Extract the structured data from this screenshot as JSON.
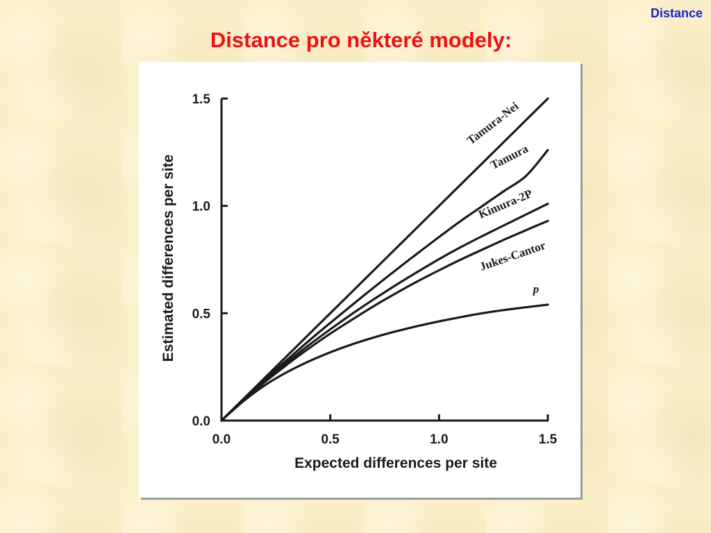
{
  "header": {
    "corner_label": "Distance",
    "title": "Distance pro některé modely:"
  },
  "colors": {
    "background": "#fbefc9",
    "title": "#ee1111",
    "corner_label": "#1a22c8",
    "plot_line": "#1a1a1a"
  },
  "chart_data": {
    "type": "line",
    "title": "",
    "xlabel": "Expected differences per site",
    "ylabel": "Estimated differences per site",
    "xlim": [
      0,
      1.5
    ],
    "ylim": [
      0,
      1.5
    ],
    "grid": false,
    "legend": "inline labels at line ends",
    "x_ticks": [
      "0.0",
      "0.5",
      "1.0",
      "1.5"
    ],
    "y_ticks": [
      "0.0",
      "0.5",
      "1.0",
      "1.5"
    ],
    "x": [
      0,
      0.1,
      0.2,
      0.3,
      0.4,
      0.5,
      0.6,
      0.7,
      0.8,
      0.9,
      1.0,
      1.1,
      1.2,
      1.3,
      1.4,
      1.5
    ],
    "series": [
      {
        "name": "Tamura-Nei",
        "values": [
          0,
          0.1,
          0.2,
          0.3,
          0.4,
          0.5,
          0.6,
          0.7,
          0.8,
          0.9,
          1.0,
          1.1,
          1.2,
          1.3,
          1.4,
          1.5
        ]
      },
      {
        "name": "Tamura",
        "values": [
          0,
          0.098,
          0.192,
          0.282,
          0.37,
          0.455,
          0.538,
          0.62,
          0.7,
          0.778,
          0.855,
          0.93,
          1.0,
          1.07,
          1.14,
          1.26
        ]
      },
      {
        "name": "Kimura-2P",
        "values": [
          0,
          0.096,
          0.185,
          0.27,
          0.35,
          0.425,
          0.497,
          0.565,
          0.63,
          0.692,
          0.752,
          0.808,
          0.86,
          0.91,
          0.96,
          1.01
        ]
      },
      {
        "name": "Jukes-Cantor",
        "values": [
          0,
          0.095,
          0.18,
          0.26,
          0.335,
          0.405,
          0.47,
          0.533,
          0.592,
          0.648,
          0.7,
          0.75,
          0.797,
          0.843,
          0.887,
          0.93
        ]
      },
      {
        "name": "p",
        "values": [
          0,
          0.09,
          0.165,
          0.225,
          0.275,
          0.318,
          0.355,
          0.387,
          0.415,
          0.44,
          0.462,
          0.482,
          0.5,
          0.515,
          0.528,
          0.54
        ]
      }
    ]
  }
}
